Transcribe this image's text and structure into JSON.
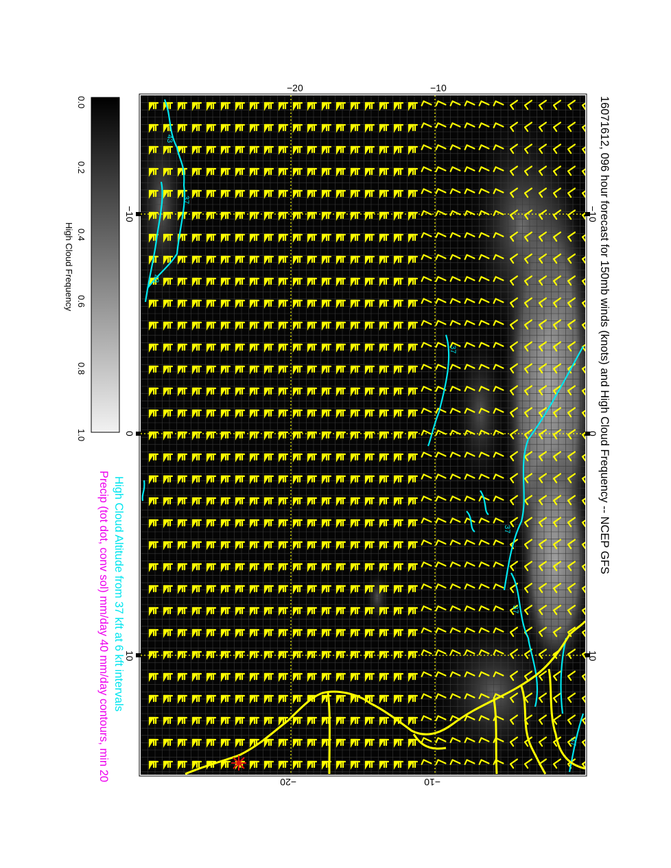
{
  "title": "16071612, 096 hour forecast for 150mb winds (knots) and High Cloud Frequency -- NCEP GFS",
  "subtitle_cyan": "High Cloud Altitude from 37 kft at 6 kft intervals",
  "subtitle_magenta": "Precip (tot dot, conv sol) mm/day 40 mm/day contours, min 20",
  "colorbar": {
    "label": "High Cloud Frequency",
    "ticks": [
      "0.0",
      "0.2",
      "0.4",
      "0.6",
      "0.8",
      "1.0"
    ]
  },
  "map": {
    "top_axis_ticks": [
      "−20",
      "−10"
    ],
    "bottom_axis_ticks": [
      "−20",
      "−10"
    ],
    "left_axis_ticks": [
      "−10",
      "0",
      "10"
    ],
    "right_axis_ticks": [
      "−10",
      "0",
      "10"
    ],
    "contour_labels": [
      "43",
      "37",
      "43",
      "37",
      "37",
      "37",
      "37",
      "37",
      "37"
    ]
  },
  "colors": {
    "background": "#000000",
    "wind_barbs": "#ffff00",
    "contours": "#00e5ee",
    "precip_text": "#ee00ee",
    "marker": "#dd1111"
  },
  "marker_icon": "red-asterisk-icon"
}
